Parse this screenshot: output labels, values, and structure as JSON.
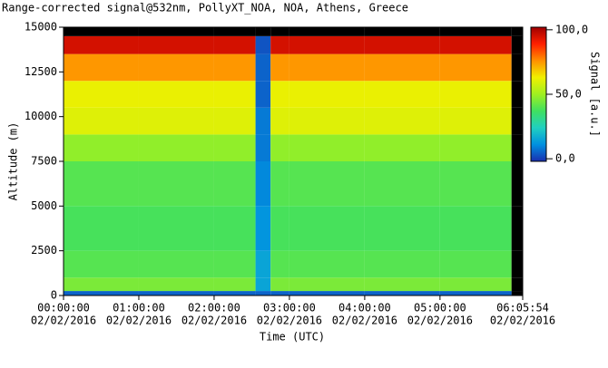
{
  "chart_data": {
    "type": "heatmap",
    "title": "Range-corrected signal@532nm, PollyXT_NOA, NOA, Athens, Greece",
    "x_label": "Time (UTC)",
    "y_label": "Altitude (m)",
    "colorbar_label": "Signal [a.u.]",
    "x_date": "02/02/2016",
    "x_edges": [
      0,
      1,
      2,
      2.55,
      2.75,
      3,
      4,
      5,
      5.95,
      6.0983
    ],
    "y_edges": [
      0,
      250,
      1000,
      2500,
      5000,
      7500,
      9000,
      10500,
      12000,
      13500,
      14500,
      15000
    ],
    "z": [
      [
        5,
        5,
        5,
        5,
        5,
        5,
        5,
        5,
        null
      ],
      [
        45,
        45,
        45,
        15,
        45,
        45,
        45,
        45,
        null
      ],
      [
        40,
        40,
        40,
        15,
        40,
        40,
        40,
        40,
        null
      ],
      [
        38,
        38,
        38,
        12,
        38,
        38,
        38,
        38,
        null
      ],
      [
        40,
        40,
        40,
        10,
        40,
        40,
        40,
        40,
        null
      ],
      [
        48,
        48,
        48,
        8,
        48,
        48,
        48,
        48,
        null
      ],
      [
        60,
        60,
        60,
        8,
        60,
        60,
        60,
        60,
        null
      ],
      [
        62,
        62,
        62,
        5,
        62,
        62,
        62,
        62,
        null
      ],
      [
        75,
        75,
        75,
        5,
        75,
        75,
        75,
        75,
        null
      ],
      [
        95,
        95,
        95,
        3,
        95,
        95,
        95,
        95,
        null
      ],
      [
        null,
        null,
        null,
        null,
        null,
        null,
        null,
        null,
        null
      ]
    ],
    "xlim": [
      0,
      6.0983
    ],
    "ylim": [
      0,
      15000
    ],
    "clim": [
      -2,
      102
    ],
    "xticks": [
      {
        "value": 0,
        "label": "00:00:00"
      },
      {
        "value": 1,
        "label": "01:00:00"
      },
      {
        "value": 2,
        "label": "02:00:00"
      },
      {
        "value": 3,
        "label": "03:00:00"
      },
      {
        "value": 4,
        "label": "04:00:00"
      },
      {
        "value": 5,
        "label": "05:00:00"
      },
      {
        "value": 6.0983,
        "label": "06:05:54"
      }
    ],
    "yticks": [
      0,
      2500,
      5000,
      7500,
      10000,
      12500,
      15000
    ],
    "cticks": [
      {
        "value": 0,
        "label": "0,0"
      },
      {
        "value": 50,
        "label": "50,0"
      },
      {
        "value": 100,
        "label": "100,0"
      }
    ],
    "colorscale": [
      "#1a2fb0",
      "#0090e0",
      "#20d0c0",
      "#40e060",
      "#a0f020",
      "#f0f000",
      "#ff9000",
      "#ff2000",
      "#a00000"
    ],
    "missing_color": "#000000"
  }
}
